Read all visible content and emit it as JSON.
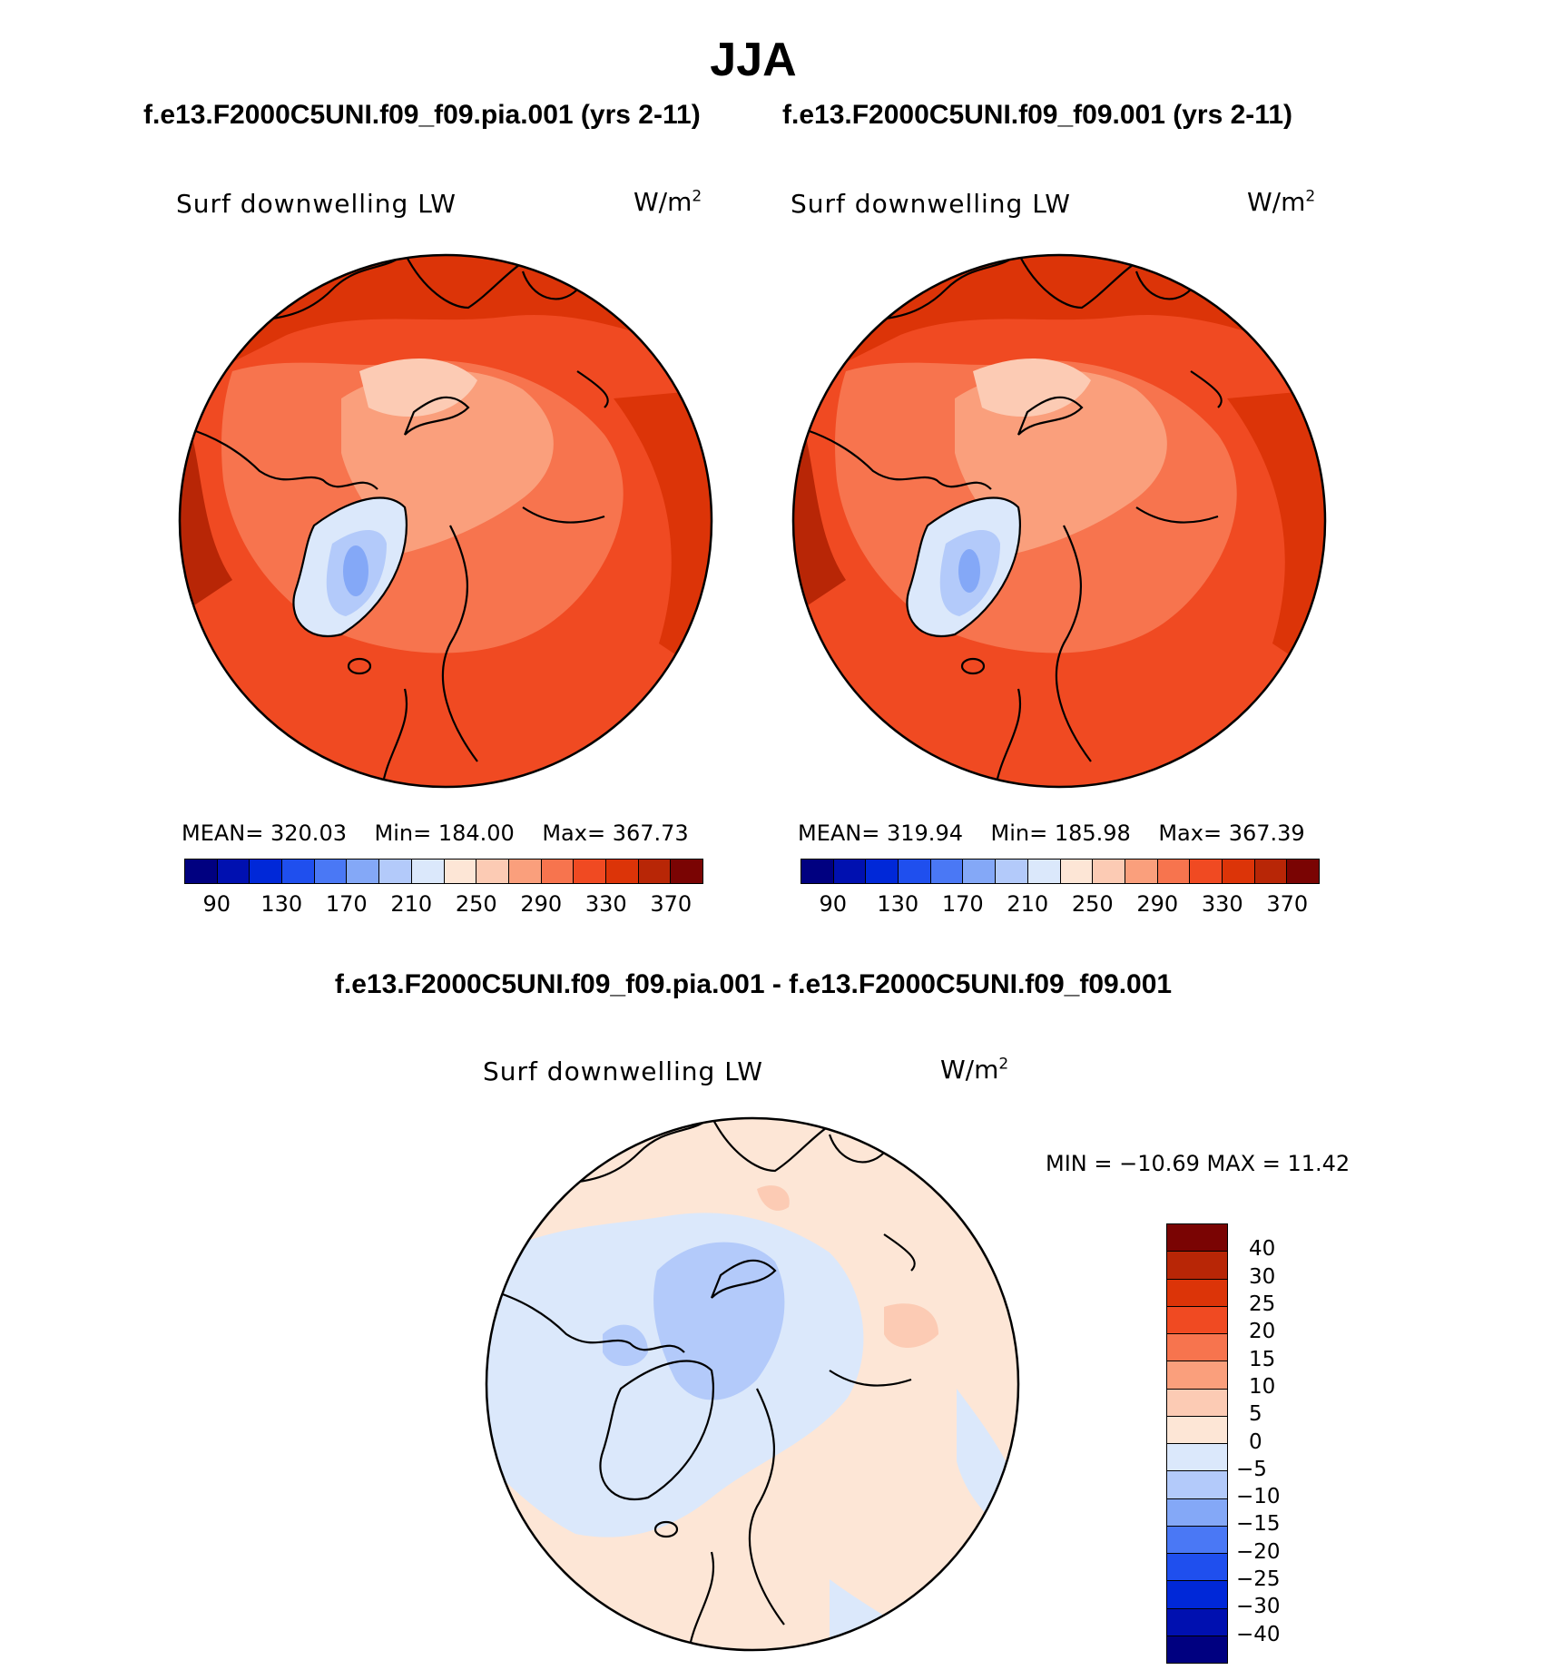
{
  "main_title": "JJA",
  "case_titles": {
    "left": "f.e13.F2000C5UNI.f09_f09.pia.001 (yrs 2-11)",
    "right": "f.e13.F2000C5UNI.f09_f09.001 (yrs 2-11)"
  },
  "diff_title": "f.e13.F2000C5UNI.f09_f09.pia.001 - f.e13.F2000C5UNI.f09_f09.001",
  "panels": {
    "left": {
      "variable": "Surf downwelling LW",
      "unit_base": "W/m",
      "unit_exp": "2",
      "mean_label": "MEAN=",
      "mean": "320.03",
      "min_label": "Min=",
      "min": "184.00",
      "max_label": "Max=",
      "max": "367.73"
    },
    "right": {
      "variable": "Surf downwelling LW",
      "unit_base": "W/m",
      "unit_exp": "2",
      "mean_label": "MEAN=",
      "mean": "319.94",
      "min_label": "Min=",
      "min": "185.98",
      "max_label": "Max=",
      "max": "367.39"
    },
    "diff": {
      "variable": "Surf downwelling LW",
      "unit_base": "W/m",
      "unit_exp": "2",
      "minmax": "MIN = −10.69 MAX =   11.42"
    }
  },
  "chart_data": [
    {
      "type": "heatmap",
      "projection": "polar-stereographic (north pole)",
      "title": "f.e13.F2000C5UNI.f09_f09.pia.001 (yrs 2-11)",
      "variable": "Surf downwelling LW",
      "units": "W/m2",
      "stats": {
        "mean": 320.03,
        "min": 184.0,
        "max": 367.73
      },
      "colorbar": {
        "orientation": "horizontal",
        "levels": [
          90,
          110,
          130,
          150,
          170,
          190,
          210,
          230,
          250,
          270,
          290,
          310,
          330,
          350,
          370
        ],
        "tick_labels": [
          "90",
          "130",
          "170",
          "210",
          "250",
          "290",
          "330",
          "370"
        ],
        "colors": [
          "#000080",
          "#0010b0",
          "#0028d8",
          "#1f4fee",
          "#4a78f5",
          "#84a8f7",
          "#b3cafa",
          "#dbe8fb",
          "#fde6d6",
          "#fccbb4",
          "#fa9f7c",
          "#f7744e",
          "#f04a22",
          "#dc3408",
          "#b82606",
          "#7a0403"
        ]
      }
    },
    {
      "type": "heatmap",
      "projection": "polar-stereographic (north pole)",
      "title": "f.e13.F2000C5UNI.f09_f09.001 (yrs 2-11)",
      "variable": "Surf downwelling LW",
      "units": "W/m2",
      "stats": {
        "mean": 319.94,
        "min": 185.98,
        "max": 367.39
      },
      "colorbar": {
        "orientation": "horizontal",
        "levels": [
          90,
          110,
          130,
          150,
          170,
          190,
          210,
          230,
          250,
          270,
          290,
          310,
          330,
          350,
          370
        ],
        "tick_labels": [
          "90",
          "130",
          "170",
          "210",
          "250",
          "290",
          "330",
          "370"
        ],
        "colors": [
          "#000080",
          "#0010b0",
          "#0028d8",
          "#1f4fee",
          "#4a78f5",
          "#84a8f7",
          "#b3cafa",
          "#dbe8fb",
          "#fde6d6",
          "#fccbb4",
          "#fa9f7c",
          "#f7744e",
          "#f04a22",
          "#dc3408",
          "#b82606",
          "#7a0403"
        ]
      }
    },
    {
      "type": "heatmap",
      "projection": "polar-stereographic (north pole)",
      "title": "f.e13.F2000C5UNI.f09_f09.pia.001 - f.e13.F2000C5UNI.f09_f09.001",
      "variable": "Surf downwelling LW",
      "units": "W/m2",
      "stats": {
        "min": -10.69,
        "max": 11.42
      },
      "colorbar": {
        "orientation": "vertical",
        "tick_labels": [
          "40",
          "30",
          "25",
          "20",
          "15",
          "10",
          "5",
          "0",
          "−5",
          "−10",
          "−15",
          "−20",
          "−25",
          "−30",
          "−40"
        ],
        "colors_top_to_bottom": [
          "#7a0403",
          "#b82606",
          "#dc3408",
          "#f04a22",
          "#f7744e",
          "#fa9f7c",
          "#fccbb4",
          "#fde6d6",
          "#dbe8fb",
          "#b3cafa",
          "#84a8f7",
          "#4a78f5",
          "#1f4fee",
          "#0028d8",
          "#0010b0",
          "#000080"
        ]
      }
    }
  ]
}
